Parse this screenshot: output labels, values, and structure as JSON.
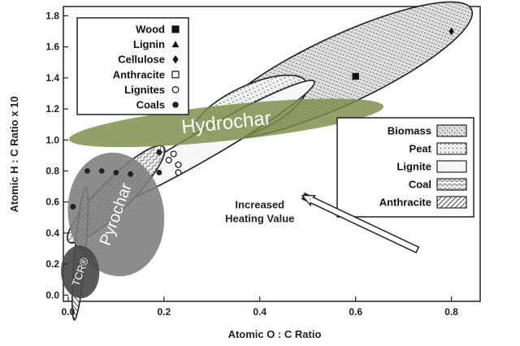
{
  "chart_data": {
    "type": "scatter",
    "xlabel": "Atomic O : C Ratio",
    "ylabel": "Atomic H : C Ratio x 10",
    "xlim": [
      -0.01,
      0.86
    ],
    "ylim": [
      -0.04,
      1.86
    ],
    "x_ticks": [
      {
        "value": 0.0,
        "label": "0.0"
      },
      {
        "value": 0.2,
        "label": "0.2"
      },
      {
        "value": 0.4,
        "label": "0.4"
      },
      {
        "value": 0.6,
        "label": "0.6"
      },
      {
        "value": 0.8,
        "label": "0.8"
      }
    ],
    "y_ticks": [
      {
        "value": 0.0,
        "label": "0.0"
      },
      {
        "value": 0.2,
        "label": "0.2"
      },
      {
        "value": 0.4,
        "label": "0.4"
      },
      {
        "value": 0.6,
        "label": "0.6"
      },
      {
        "value": 0.8,
        "label": "0.8"
      },
      {
        "value": 1.0,
        "label": "1.0"
      },
      {
        "value": 1.2,
        "label": "1.2"
      },
      {
        "value": 1.4,
        "label": "1.4"
      },
      {
        "value": 1.6,
        "label": "1.6"
      },
      {
        "value": 1.8,
        "label": "1.8"
      }
    ],
    "marker_legend": [
      {
        "name": "Wood",
        "marker": "square"
      },
      {
        "name": "Lignin",
        "marker": "triangle"
      },
      {
        "name": "Cellulose",
        "marker": "diamond"
      },
      {
        "name": "Anthracite",
        "marker": "open-square"
      },
      {
        "name": "Lignites",
        "marker": "open-circle"
      },
      {
        "name": "Coals",
        "marker": "filled-circle"
      }
    ],
    "region_legend": [
      {
        "name": "Biomass",
        "pattern": "biomass"
      },
      {
        "name": "Peat",
        "pattern": "peat"
      },
      {
        "name": "Lignite",
        "pattern": "lignite"
      },
      {
        "name": "Coal",
        "pattern": "coal"
      },
      {
        "name": "Anthracite",
        "pattern": "anthracite"
      }
    ],
    "points": [
      {
        "series": "Wood",
        "marker": "square",
        "x": 0.6,
        "y": 1.41
      },
      {
        "series": "Cellulose",
        "marker": "diamond",
        "x": 0.8,
        "y": 1.7
      },
      {
        "series": "Coals",
        "marker": "filled-circle",
        "x": 0.01,
        "y": 0.57
      },
      {
        "series": "Coals",
        "marker": "filled-circle",
        "x": 0.04,
        "y": 0.8
      },
      {
        "series": "Coals",
        "marker": "filled-circle",
        "x": 0.07,
        "y": 0.8
      },
      {
        "series": "Coals",
        "marker": "filled-circle",
        "x": 0.1,
        "y": 0.79
      },
      {
        "series": "Coals",
        "marker": "filled-circle",
        "x": 0.13,
        "y": 0.78
      },
      {
        "series": "Coals",
        "marker": "filled-circle",
        "x": 0.19,
        "y": 0.92
      },
      {
        "series": "Coals",
        "marker": "filled-circle",
        "x": 0.19,
        "y": 0.79
      },
      {
        "series": "Lignites",
        "marker": "open-circle",
        "x": 0.21,
        "y": 0.87
      },
      {
        "series": "Lignites",
        "marker": "open-circle",
        "x": 0.22,
        "y": 0.91
      },
      {
        "series": "Lignites",
        "marker": "open-circle",
        "x": 0.23,
        "y": 0.84
      },
      {
        "series": "Lignites",
        "marker": "open-circle",
        "x": 0.23,
        "y": 0.79
      }
    ],
    "regions": [
      {
        "name": "Biomass",
        "pattern": "biomass",
        "cx": 0.57,
        "cy": 1.45,
        "rx": 0.3,
        "ry": 0.22,
        "angle": 25
      },
      {
        "name": "Peat",
        "pattern": "peat",
        "cx": 0.38,
        "cy": 1.2,
        "rx": 0.13,
        "ry": 0.15,
        "angle": 25
      },
      {
        "name": "Lignite",
        "pattern": "lignite",
        "cx": 0.28,
        "cy": 0.96,
        "rx": 0.27,
        "ry": 0.09,
        "angle": 30
      },
      {
        "name": "Coal",
        "pattern": "coal",
        "cx": 0.1,
        "cy": 0.65,
        "rx": 0.14,
        "ry": 0.1,
        "angle": 45
      },
      {
        "name": "Anthracite",
        "pattern": "anthracite",
        "cx": 0.025,
        "cy": 0.27,
        "rx": 0.14,
        "ry": 0.035,
        "angle": 85
      }
    ],
    "char_regions": [
      {
        "label": "Hydrochar",
        "cx": 0.33,
        "cy": 1.11,
        "rx": 0.33,
        "ry": 0.115,
        "angle": 6,
        "color": "#7a8c45",
        "opacity": 0.82,
        "text_angle": -6,
        "font_size": 24
      },
      {
        "label": "Pyrochar",
        "cx": 0.1,
        "cy": 0.52,
        "rx": 0.1,
        "ry": 0.4,
        "angle": 8,
        "color": "#7d7d7d",
        "opacity": 0.88,
        "text_angle": -70,
        "font_size": 20
      },
      {
        "label": "TCR®",
        "cx": 0.025,
        "cy": 0.15,
        "rx": 0.04,
        "ry": 0.17,
        "angle": 3,
        "color": "#4a4a4a",
        "opacity": 0.92,
        "text_angle": -70,
        "font_size": 13
      }
    ],
    "annotation": {
      "lines": [
        "Increased",
        "Heating Value"
      ],
      "arrow_from": [
        0.73,
        0.29
      ],
      "arrow_to": [
        0.49,
        0.64
      ],
      "text_at": [
        0.4,
        0.56
      ]
    }
  }
}
